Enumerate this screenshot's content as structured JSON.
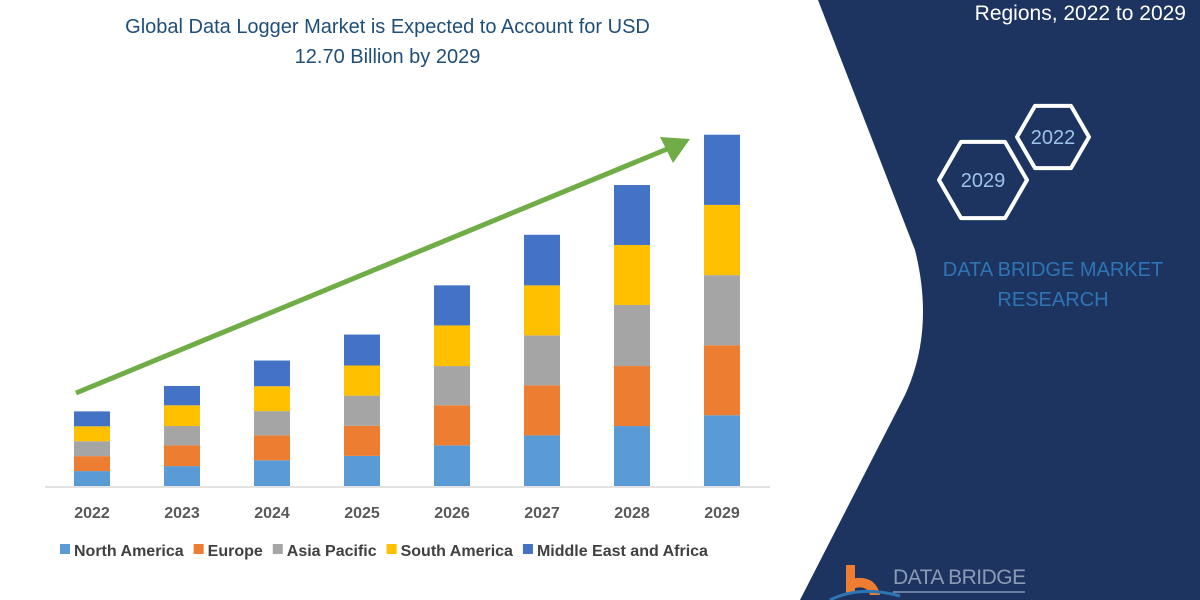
{
  "title_line1": "Global Data Logger Market is Expected to Account for USD",
  "title_line2": "12.70 Billion by 2029",
  "side_panel": {
    "heading": "Regions, 2022 to 2029",
    "hex_labels": [
      "2022",
      "2029"
    ],
    "brand_line1": "DATA BRIDGE MARKET",
    "brand_line2": "RESEARCH",
    "logo_text": "DATA BRIDGE",
    "panel_color": "#1d3461"
  },
  "chart_data": {
    "type": "bar",
    "stacked": true,
    "title": "Global Data Logger Market is Expected to Account for USD 12.70 Billion by 2029",
    "categories": [
      "2022",
      "2023",
      "2024",
      "2025",
      "2026",
      "2027",
      "2028",
      "2029"
    ],
    "series": [
      {
        "name": "North America",
        "color": "#5b9bd5",
        "values": [
          0.54,
          0.72,
          0.93,
          1.09,
          1.47,
          1.83,
          2.17,
          2.56
        ]
      },
      {
        "name": "Europe",
        "color": "#ed7d31",
        "values": [
          0.54,
          0.75,
          0.9,
          1.09,
          1.45,
          1.81,
          2.17,
          2.53
        ]
      },
      {
        "name": "Asia Pacific",
        "color": "#a5a5a5",
        "values": [
          0.54,
          0.7,
          0.88,
          1.09,
          1.42,
          1.81,
          2.21,
          2.54
        ]
      },
      {
        "name": "South America",
        "color": "#ffc000",
        "values": [
          0.54,
          0.75,
          0.9,
          1.09,
          1.47,
          1.81,
          2.17,
          2.54
        ]
      },
      {
        "name": "Middle East and Africa",
        "color": "#4472c4",
        "values": [
          0.54,
          0.7,
          0.93,
          1.12,
          1.45,
          1.83,
          2.17,
          2.54
        ]
      }
    ],
    "unit": "USD Billion",
    "y_axis_shown": false,
    "grid": false,
    "legend_position": "bottom",
    "trend_arrow_color": "#70ad47"
  }
}
